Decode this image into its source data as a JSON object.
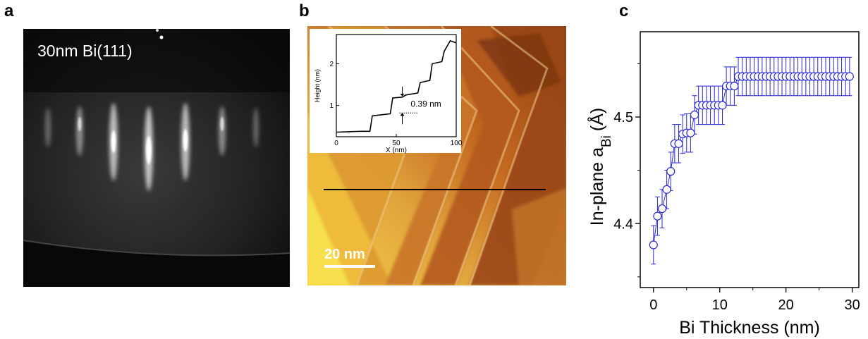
{
  "panels": {
    "a": {
      "letter": "a",
      "label": "30nm Bi(111)"
    },
    "b": {
      "letter": "b",
      "scalebar_label": "20 nm",
      "inset": {
        "xlabel": "X (nm)",
        "ylabel": "Height (nm)",
        "x_ticks": [
          "0",
          "50",
          "100"
        ],
        "y_ticks": [
          "1",
          "2"
        ],
        "step_label": "0.39 nm",
        "profile": {
          "x": [
            0,
            10,
            20,
            28,
            30,
            45,
            47,
            55,
            58,
            68,
            70,
            78,
            80,
            88,
            90,
            95,
            100
          ],
          "y": [
            0.36,
            0.37,
            0.38,
            0.38,
            0.75,
            0.8,
            1.18,
            1.2,
            1.25,
            1.3,
            1.55,
            1.6,
            2.0,
            2.05,
            2.3,
            2.55,
            2.5
          ]
        }
      }
    },
    "c": {
      "letter": "c"
    }
  },
  "chart_data": {
    "type": "scatter",
    "title": "",
    "xlabel": "Bi Thickness (nm)",
    "ylabel_main": "In-plane a",
    "ylabel_sub": "Bi",
    "ylabel_unit": "(Å)",
    "xlim": [
      -2,
      31
    ],
    "ylim": [
      4.34,
      4.58
    ],
    "x_ticks": [
      0,
      10,
      20,
      30
    ],
    "y_ticks": [
      4.4,
      4.5
    ],
    "y_tick_labels": [
      "4.4",
      "4.5"
    ],
    "marker_color": "#2a2acf",
    "series": [
      {
        "x": [
          0,
          0.6,
          1.3,
          2,
          2.6,
          3.2,
          3.8,
          4.4,
          5,
          5.6,
          6.2,
          6.8,
          7.4,
          8,
          8.6,
          9.2,
          9.8,
          10.4,
          11,
          11.6,
          12.2,
          12.8,
          13.4,
          14,
          14.6,
          15.2,
          15.8,
          16.4,
          17,
          17.6,
          18.2,
          18.8,
          19.4,
          20,
          20.6,
          21.2,
          21.8,
          22.4,
          23,
          23.6,
          24.2,
          24.8,
          25.4,
          26,
          26.6,
          27.2,
          27.8,
          28.4,
          29,
          29.6
        ],
        "y": [
          4.38,
          4.407,
          4.414,
          4.432,
          4.449,
          4.475,
          4.475,
          4.484,
          4.485,
          4.485,
          4.502,
          4.511,
          4.511,
          4.511,
          4.511,
          4.511,
          4.511,
          4.511,
          4.529,
          4.529,
          4.529,
          4.538,
          4.538,
          4.538,
          4.538,
          4.538,
          4.538,
          4.538,
          4.538,
          4.538,
          4.538,
          4.538,
          4.538,
          4.538,
          4.538,
          4.538,
          4.538,
          4.538,
          4.538,
          4.538,
          4.538,
          4.538,
          4.538,
          4.538,
          4.538,
          4.538,
          4.538,
          4.538,
          4.538,
          4.538
        ],
        "err": [
          0.018,
          0.018,
          0.018,
          0.018,
          0.018,
          0.018,
          0.018,
          0.018,
          0.018,
          0.018,
          0.018,
          0.018,
          0.018,
          0.018,
          0.018,
          0.018,
          0.018,
          0.018,
          0.018,
          0.018,
          0.018,
          0.018,
          0.018,
          0.018,
          0.018,
          0.018,
          0.018,
          0.018,
          0.018,
          0.018,
          0.018,
          0.018,
          0.018,
          0.018,
          0.018,
          0.018,
          0.018,
          0.018,
          0.018,
          0.018,
          0.018,
          0.018,
          0.018,
          0.018,
          0.018,
          0.018,
          0.018,
          0.018,
          0.018,
          0.018
        ]
      }
    ]
  }
}
